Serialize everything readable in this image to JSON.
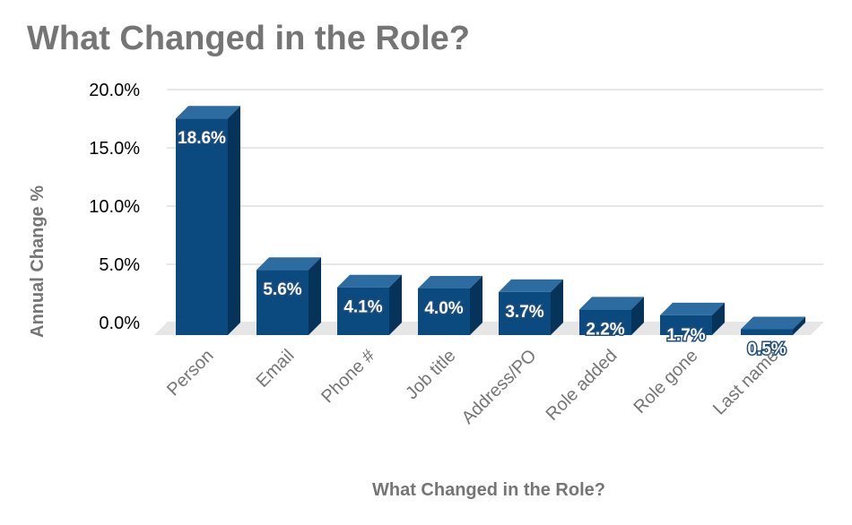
{
  "chart_data": {
    "type": "bar",
    "title": "What Changed in the Role?",
    "xlabel": "What Changed in the Role?",
    "ylabel": "Annual Change %",
    "categories": [
      "Person",
      "Email",
      "Phone #",
      "Job title",
      "Address/PO",
      "Role added",
      "Role gone",
      "Last name"
    ],
    "values": [
      18.6,
      5.6,
      4.1,
      4.0,
      3.7,
      2.2,
      1.7,
      0.5
    ],
    "data_labels": [
      "18.6%",
      "5.6%",
      "4.1%",
      "4.0%",
      "3.7%",
      "2.2%",
      "1.7%",
      "0.5%"
    ],
    "ylim": [
      0,
      20
    ],
    "y_ticks": [
      0,
      5,
      10,
      15,
      20
    ],
    "y_tick_labels": [
      "0.0%",
      "5.0%",
      "10.0%",
      "15.0%",
      "20.0%"
    ],
    "grid": true,
    "legend": "none",
    "style": "3d-column",
    "colors": {
      "bar_front": "#0b4a7e",
      "bar_top": "#2d6ca0",
      "bar_side": "#06335a",
      "floor": "#e6e6e6",
      "grid": "#cfcfcf",
      "title": "#757575"
    }
  }
}
